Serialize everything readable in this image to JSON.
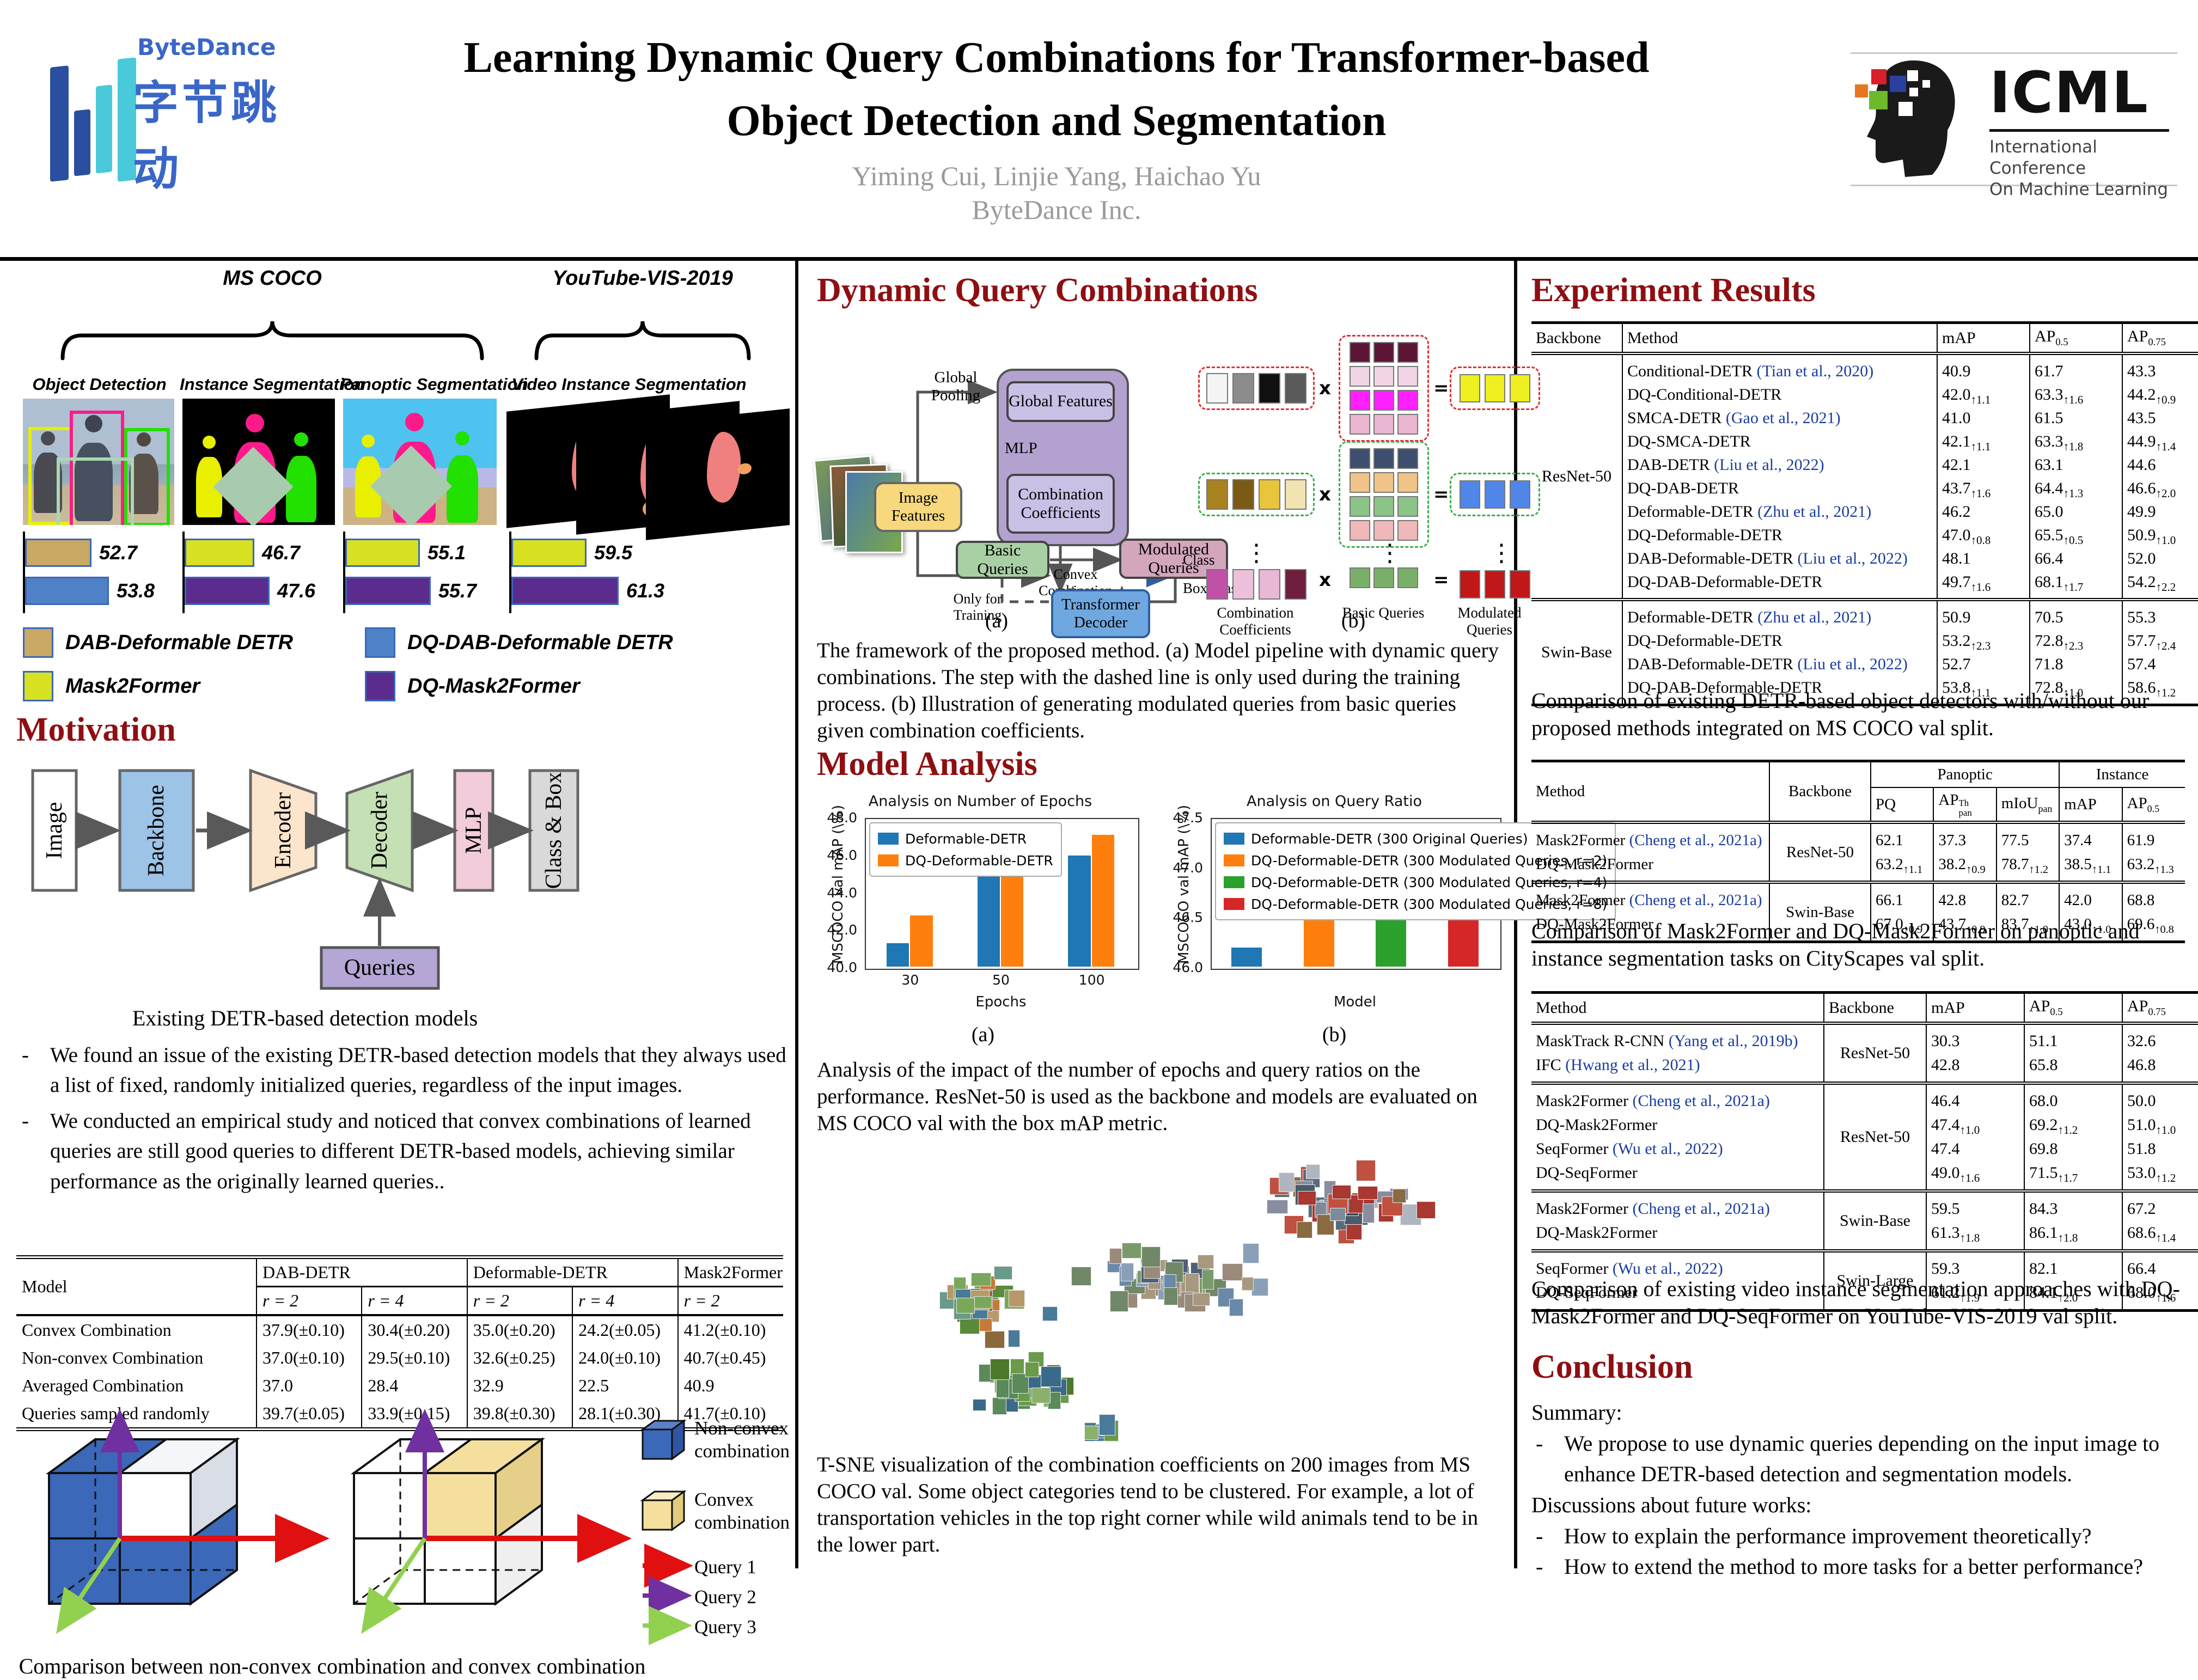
{
  "header": {
    "logo_name": "ByteDance",
    "logo_cjk": "字节跳动",
    "title_line1": "Learning Dynamic Query Combinations for Transformer-based",
    "title_line2": "Object Detection and Segmentation",
    "authors": "Yiming Cui, Linjie Yang, Haichao Yu",
    "affiliation": "ByteDance Inc.",
    "icml_abbr": "ICML",
    "icml_line1": "International Conference",
    "icml_line2": "On Machine Learning"
  },
  "left": {
    "datasets": {
      "coco": "MS COCO",
      "ytvis": "YouTube-VIS-2019"
    },
    "tasks": [
      "Object Detection",
      "Instance Segmentation",
      "Panoptic Segmentation",
      "Video Instance Segmentation"
    ],
    "legend": [
      {
        "label": "DAB-Deformable DETR",
        "color": "#c9a863"
      },
      {
        "label": "DQ-DAB-Deformable DETR",
        "color": "#4f81c7"
      },
      {
        "label": "Mask2Former",
        "color": "#d7e021"
      },
      {
        "label": "DQ-Mask2Former",
        "color": "#5b2c8e"
      }
    ],
    "motivation_heading": "Motivation",
    "pipeline": [
      "Image",
      "Backbone",
      "Encoder",
      "Decoder",
      "MLP",
      "Class & Box",
      "Queries"
    ],
    "pipeline_caption": "Existing DETR-based detection models",
    "bullets": [
      "We found an issue of the existing DETR-based detection models that they always used a list of fixed, randomly initialized queries, regardless of the input images.",
      "We conducted an empirical study and noticed that convex combinations of learned queries are still good queries to different DETR-based models, achieving similar performance as the originally learned queries.."
    ],
    "combo_table": {
      "row_header": "Model",
      "col_groups": [
        {
          "label": "DAB-DETR",
          "cols": [
            "r = 2",
            "r = 4"
          ]
        },
        {
          "label": "Deformable-DETR",
          "cols": [
            "r = 2",
            "r = 4"
          ]
        },
        {
          "label": "Mask2Former",
          "cols": [
            "r = 2"
          ]
        }
      ],
      "rows": [
        {
          "label": "Convex Combination",
          "values": [
            "37.9(±0.10)",
            "30.4(±0.20)",
            "35.0(±0.20)",
            "24.2(±0.05)",
            "41.2(±0.10)"
          ]
        },
        {
          "label": "Non-convex Combination",
          "values": [
            "37.0(±0.10)",
            "29.5(±0.10)",
            "32.6(±0.25)",
            "24.0(±0.10)",
            "40.7(±0.45)"
          ]
        },
        {
          "label": "Averaged Combination",
          "values": [
            "37.0",
            "28.4",
            "32.9",
            "22.5",
            "40.9"
          ]
        },
        {
          "label": "Queries sampled randomly",
          "values": [
            "39.7(±0.05)",
            "33.9(±0.15)",
            "39.8(±0.30)",
            "28.1(±0.30)",
            "41.7(±0.10)"
          ]
        }
      ]
    },
    "cube": {
      "legend_noncvx1": "Non-convex",
      "legend_noncvx2": "combination",
      "legend_cvx1": "Convex",
      "legend_cvx2": "combination",
      "query1": "Query 1",
      "query2": "Query 2",
      "query3": "Query 3",
      "caption": "Comparison between non-convex combination and convex combination"
    }
  },
  "middle": {
    "heading": "Dynamic Query Combinations",
    "diagram_a": {
      "global_pooling": "Global Pooling",
      "image_features": "Image Features",
      "global_features": "Global Features",
      "mlp": "MLP",
      "combination_coefficients": "Combination Coefficients",
      "basic_queries": "Basic Queries",
      "convex_combination": "Convex Combination",
      "modulated_queries": "Modulated Queries",
      "only_for_training": "Only for Training",
      "transformer_decoder": "Transformer Decoder",
      "out_class": "Class",
      "out_box": "Box/Mask",
      "sublabel": "(a)"
    },
    "diagram_b": {
      "times": "x",
      "equals": "=",
      "label_coeff": "Combination Coefficients",
      "label_basic": "Basic Queries",
      "label_out": "Modulated Queries",
      "sublabel": "(b)",
      "rows": [
        {
          "frame": "#e03030",
          "coeffs": [
            "#f4f4f4",
            "#8c8c8c",
            "#101010",
            "#5a5a5a"
          ],
          "basics": [
            [
              "#5c1535",
              "#5c1535",
              "#5c1535"
            ],
            [
              "#f2d5e5",
              "#f2d5e5",
              "#f2d5e5"
            ],
            [
              "#ff20ff",
              "#ff20ff",
              "#ff20ff"
            ],
            [
              "#eab6d2",
              "#eab6d2",
              "#eab6d2"
            ]
          ],
          "out": [
            "#eef020",
            "#eef020",
            "#eef020"
          ]
        },
        {
          "frame": "#3fae4c",
          "coeffs": [
            "#a8831f",
            "#7a5a14",
            "#e8c53a",
            "#f2e4b2"
          ],
          "basics": [
            [
              "#3d4e6e",
              "#3d4e6e",
              "#3d4e6e"
            ],
            [
              "#f0c488",
              "#f0c488",
              "#f0c488"
            ],
            [
              "#8cc488",
              "#8cc488",
              "#8cc488"
            ],
            [
              "#f0b8b8",
              "#f0b8b8",
              "#f0b8b8"
            ]
          ],
          "out": [
            "#4f86e8",
            "#4f86e8",
            "#4f86e8"
          ]
        },
        {
          "frame": null,
          "coeffs": [
            "#c050a8",
            "#ecc0da",
            "#e8b8d4",
            "#6e1e3e"
          ],
          "basics": [
            [
              "#7ab06a",
              "#7ab06a",
              "#7ab06a"
            ]
          ],
          "out": [
            "#c01818",
            "#c01818",
            "#c01818"
          ]
        }
      ]
    },
    "framework_caption": "The framework of the proposed method. (a) Model pipeline with dynamic query combinations. The step with the dashed line is only used during the training process. (b) Illustration of generating modulated queries from basic queries given combination coefficients.",
    "analysis_heading": "Model Analysis",
    "chart_sublabel_a": "(a)",
    "chart_sublabel_b": "(b)",
    "analysis_caption": "Analysis of the impact of the number of epochs and query ratios on the performance. ResNet-50 is used as the backbone and models are evaluated on MS COCO val with the box mAP metric.",
    "tsne_caption": "T-SNE visualization of the combination coefficients on 200 images from MS COCO val. Some object categories tend to be clustered. For example, a lot of transportation vehicles in the top right corner while wild animals tend to be in the lower part."
  },
  "right": {
    "heading": "Experiment Results",
    "coco_table": {
      "headers": [
        {
          "t": "Backbone"
        },
        {
          "t": "Method"
        },
        {
          "t": "mAP"
        },
        {
          "t": "AP",
          "sub": "0.5"
        },
        {
          "t": "AP",
          "sub": "0.75"
        }
      ],
      "groups": [
        {
          "backbone": "ResNet-50",
          "methods": [
            {
              "name": "Conditional-DETR",
              "cite": "(Tian et al., 2020)"
            },
            {
              "name": "DQ-Conditional-DETR"
            },
            {
              "name": "SMCA-DETR",
              "cite": "(Gao et al., 2021)"
            },
            {
              "name": "DQ-SMCA-DETR"
            },
            {
              "name": "DAB-DETR",
              "cite": "(Liu et al., 2022)"
            },
            {
              "name": "DQ-DAB-DETR"
            },
            {
              "name": "Deformable-DETR",
              "cite": "(Zhu et al., 2021)"
            },
            {
              "name": "DQ-Deformable-DETR"
            },
            {
              "name": "DAB-Deformable-DETR",
              "cite": "(Liu et al., 2022)"
            },
            {
              "name": "DQ-DAB-Deformable-DETR"
            }
          ],
          "values": [
            [
              "40.9",
              "42.0↑1.1",
              "41.0",
              "42.1↑1.1",
              "42.1",
              "43.7↑1.6",
              "46.2",
              "47.0↑0.8",
              "48.1",
              "49.7↑1.6"
            ],
            [
              "61.7",
              "63.3↑1.6",
              "61.5",
              "63.3↑1.8",
              "63.1",
              "64.4↑1.3",
              "65.0",
              "65.5↑0.5",
              "66.4",
              "68.1↑1.7"
            ],
            [
              "43.3",
              "44.2↑0.9",
              "43.5",
              "44.9↑1.4",
              "44.6",
              "46.6↑2.0",
              "49.9",
              "50.9↑1.0",
              "52.0",
              "54.2↑2.2"
            ]
          ]
        },
        {
          "backbone": "Swin-Base",
          "methods": [
            {
              "name": "Deformable-DETR",
              "cite": "(Zhu et al., 2021)"
            },
            {
              "name": "DQ-Deformable-DETR"
            },
            {
              "name": "DAB-Deformable-DETR",
              "cite": "(Liu et al., 2022)"
            },
            {
              "name": "DQ-DAB-Deformable-DETR"
            }
          ],
          "values": [
            [
              "50.9",
              "53.2↑2.3",
              "52.7",
              "53.8↑1.1"
            ],
            [
              "70.5",
              "72.8↑2.3",
              "71.8",
              "72.8↑1.0"
            ],
            [
              "55.3",
              "57.7↑2.4",
              "57.4",
              "58.6↑1.2"
            ]
          ]
        }
      ]
    },
    "coco_caption": "Comparison of existing DETR-based object detectors with/without our proposed methods integrated on MS COCO val split.",
    "city_table": {
      "top_headers": {
        "method": "Method",
        "backbone": "Backbone",
        "panoptic": "Panoptic",
        "instance": "Instance"
      },
      "sub_headers": [
        {
          "t": "PQ"
        },
        {
          "t": "AP",
          "sup": "Th",
          "sub": "pan"
        },
        {
          "t": "mIoU",
          "sub": "pan"
        },
        {
          "t": "mAP"
        },
        {
          "t": "AP",
          "sub": "0.5"
        }
      ],
      "groups": [
        {
          "backbone": "ResNet-50",
          "methods": [
            {
              "name": "Mask2Former",
              "cite": "(Cheng et al., 2021a)"
            },
            {
              "name": "DQ-Mask2Former"
            }
          ],
          "values": [
            [
              "62.1",
              "63.2↑1.1"
            ],
            [
              "37.3",
              "38.2↑0.9"
            ],
            [
              "77.5",
              "78.7↑1.2"
            ],
            [
              "37.4",
              "38.5↑1.1"
            ],
            [
              "61.9",
              "63.2↑1.3"
            ]
          ]
        },
        {
          "backbone": "Swin-Base",
          "methods": [
            {
              "name": "Mask2Former",
              "cite": "(Cheng et al., 2021a)"
            },
            {
              "name": "DQ-Mask2Former"
            }
          ],
          "values": [
            [
              "66.1",
              "67.0↑0.9"
            ],
            [
              "42.8",
              "43.7↑0.9"
            ],
            [
              "82.7",
              "83.7↑1.0"
            ],
            [
              "42.0",
              "43.0↑1.0"
            ],
            [
              "68.8",
              "69.6↑0.8"
            ]
          ]
        }
      ]
    },
    "city_caption": "Comparison of Mask2Former and DQ-Mask2Former on panoptic and instance segmentation tasks on CityScapes val split.",
    "ytvis_table": {
      "headers": [
        {
          "t": "Method"
        },
        {
          "t": "Backbone"
        },
        {
          "t": "mAP"
        },
        {
          "t": "AP",
          "sub": "0.5"
        },
        {
          "t": "AP",
          "sub": "0.75"
        }
      ],
      "groups": [
        {
          "backbone": "ResNet-50",
          "methods": [
            {
              "name": "MaskTrack R-CNN",
              "cite": "(Yang et al., 2019b)"
            },
            {
              "name": "IFC",
              "cite": "(Hwang et al., 2021)"
            }
          ],
          "values": [
            [
              "30.3",
              "42.8"
            ],
            [
              "51.1",
              "65.8"
            ],
            [
              "32.6",
              "46.8"
            ]
          ]
        },
        {
          "backbone": "ResNet-50",
          "methods": [
            {
              "name": "Mask2Former",
              "cite": "(Cheng et al., 2021a)"
            },
            {
              "name": "DQ-Mask2Former"
            },
            {
              "name": "SeqFormer",
              "cite": "(Wu et al., 2022)"
            },
            {
              "name": "DQ-SeqFormer"
            }
          ],
          "values": [
            [
              "46.4",
              "47.4↑1.0",
              "47.4",
              "49.0↑1.6"
            ],
            [
              "68.0",
              "69.2↑1.2",
              "69.8",
              "71.5↑1.7"
            ],
            [
              "50.0",
              "51.0↑1.0",
              "51.8",
              "53.0↑1.2"
            ]
          ]
        },
        {
          "backbone": "Swin-Base",
          "methods": [
            {
              "name": "Mask2Former",
              "cite": "(Cheng et al., 2021a)"
            },
            {
              "name": "DQ-Mask2Former"
            }
          ],
          "values": [
            [
              "59.5",
              "61.3↑1.8"
            ],
            [
              "84.3",
              "86.1↑1.8"
            ],
            [
              "67.2",
              "68.6↑1.4"
            ]
          ]
        },
        {
          "backbone": "Swin-Large",
          "methods": [
            {
              "name": "SeqFormer",
              "cite": "(Wu et al., 2022)"
            },
            {
              "name": "DQ-SeqFormer"
            }
          ],
          "values": [
            [
              "59.3",
              "61.2↑1.9"
            ],
            [
              "82.1",
              "84.1↑2.0"
            ],
            [
              "66.4",
              "68.0↑1.6"
            ]
          ]
        }
      ]
    },
    "ytvis_caption": "Comparison of existing video instance segmentation approaches with DQ-Mask2Former and DQ-SeqFormer on YouTube-VIS-2019 val split.",
    "conclusion_heading": "Conclusion",
    "summary_label": "Summary:",
    "summary_bullet": "We propose to use dynamic queries depending on the input image to enhance DETR-based detection and segmentation models.",
    "future_label": "Discussions about future works:",
    "future_bullets": [
      "How to explain the performance improvement theoretically?",
      "How to extend the method to more tasks for a better performance?"
    ]
  },
  "chart_data": [
    {
      "id": "intro_bars",
      "type": "bar",
      "categories": [
        "Object Detection",
        "Instance Segmentation",
        "Panoptic Segmentation",
        "Video Instance Segmentation"
      ],
      "series": [
        {
          "name": "baseline",
          "values": [
            52.7,
            46.7,
            55.1,
            59.5
          ],
          "colors": [
            "#c9a863",
            "#d7e021",
            "#d7e021",
            "#d7e021"
          ]
        },
        {
          "name": "dq",
          "values": [
            53.8,
            47.6,
            55.7,
            61.3
          ],
          "colors": [
            "#4f81c7",
            "#5b2c8e",
            "#5b2c8e",
            "#5b2c8e"
          ]
        }
      ]
    },
    {
      "id": "epochs",
      "type": "bar",
      "title": "Analysis on Number of Epochs",
      "xlabel": "Epochs",
      "ylabel": "MSCOCO val mAP (\\%)",
      "categories": [
        "30",
        "50",
        "100"
      ],
      "series": [
        {
          "name": "Deformable-DETR",
          "color": "#1f77b4",
          "values": [
            41.3,
            45.9,
            46.0
          ]
        },
        {
          "name": "DQ-Deformable-DETR",
          "color": "#ff7f0e",
          "values": [
            42.8,
            46.9,
            47.1
          ]
        }
      ],
      "ylim": [
        40.0,
        48.0
      ],
      "yticks": [
        "40.0",
        "42.0",
        "44.0",
        "46.0",
        "48.0"
      ],
      "legend_position": "upper left"
    },
    {
      "id": "query_ratio",
      "type": "bar",
      "title": "Analysis on Query Ratio",
      "xlabel": "Model",
      "ylabel": "MSCOCO val mAP (\\%)",
      "categories": [
        "Deformable-DETR (300 Original Queries)",
        "DQ-Deformable-DETR (300 Modulated Queries, r=2)",
        "DQ-Deformable-DETR (300 Modulated Queries, r=4)",
        "DQ-Deformable-DETR (300 Modulated Queries, r=8)"
      ],
      "values": [
        46.2,
        46.6,
        46.93,
        46.72
      ],
      "colors": [
        "#1f77b4",
        "#ff7f0e",
        "#2ca02c",
        "#d62728"
      ],
      "ylim": [
        46.0,
        47.5
      ],
      "yticks": [
        "46.0",
        "46.5",
        "47.0",
        "47.5"
      ],
      "legend_position": "upper left"
    }
  ]
}
